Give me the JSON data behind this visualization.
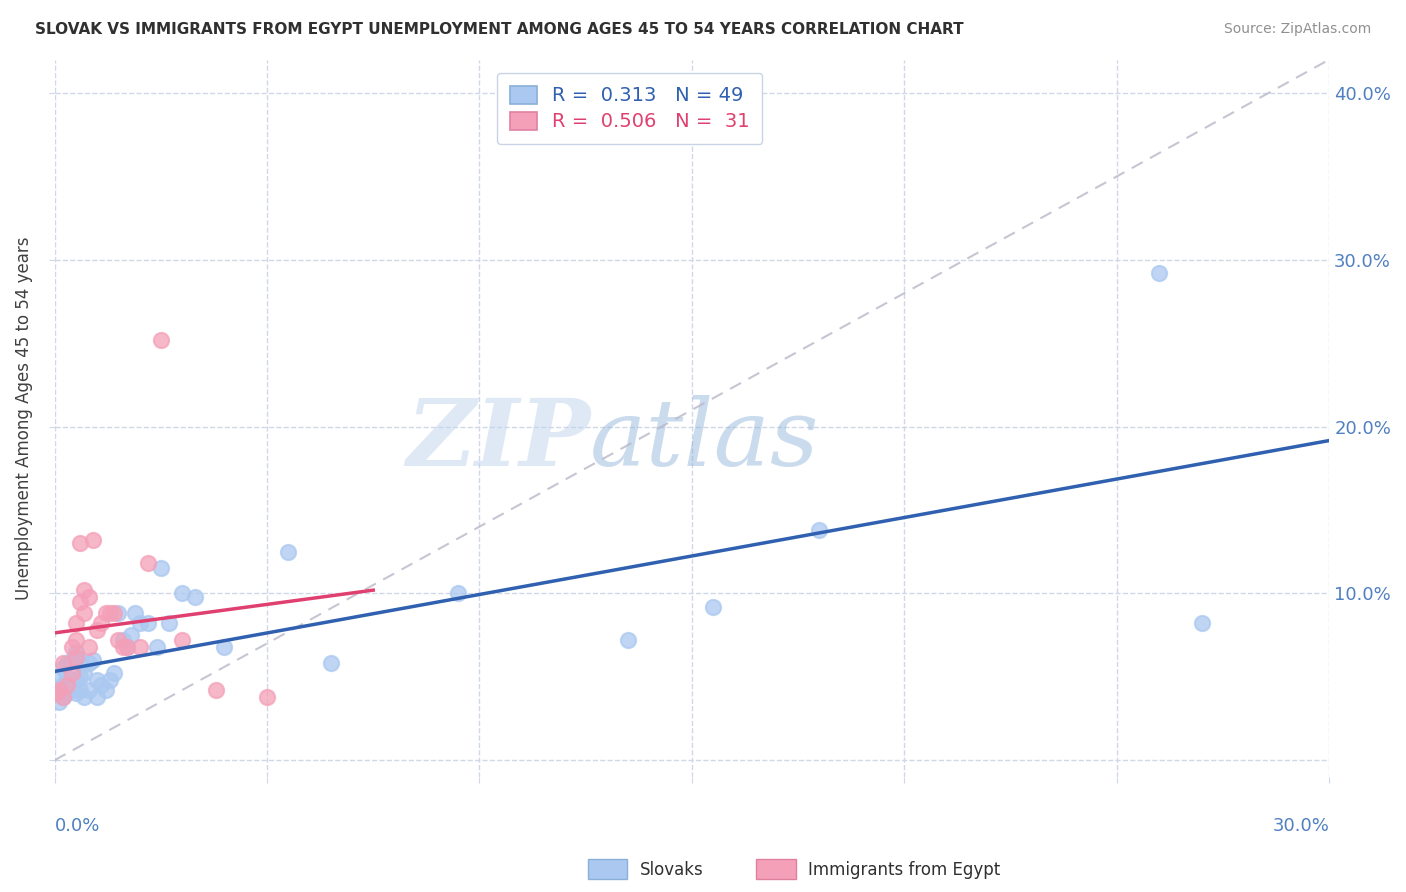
{
  "title": "SLOVAK VS IMMIGRANTS FROM EGYPT UNEMPLOYMENT AMONG AGES 45 TO 54 YEARS CORRELATION CHART",
  "source": "Source: ZipAtlas.com",
  "ylabel": "Unemployment Among Ages 45 to 54 years",
  "xlim": [
    0.0,
    0.3
  ],
  "ylim": [
    -0.01,
    0.42
  ],
  "ytick_values": [
    0.0,
    0.1,
    0.2,
    0.3,
    0.4
  ],
  "ytick_labels_right": [
    "",
    "10.0%",
    "20.0%",
    "30.0%",
    "40.0%"
  ],
  "xtick_values": [
    0.0,
    0.05,
    0.1,
    0.15,
    0.2,
    0.25,
    0.3
  ],
  "watermark_zip": "ZIP",
  "watermark_atlas": "atlas",
  "slovak_color": "#aac8f0",
  "egypt_color": "#f4a0b8",
  "slovak_line_color": "#3060b0",
  "egypt_line_color": "#e04070",
  "ref_line_color": "#b8b8c8",
  "title_color": "#303030",
  "source_color": "#909090",
  "tick_color": "#5080c0",
  "background_color": "#ffffff",
  "grid_color": "#d0d8e8",
  "slovak_R": 0.313,
  "slovak_N": 49,
  "egypt_R": 0.506,
  "egypt_N": 31,
  "slovak_points_x": [
    0.0,
    0.001,
    0.001,
    0.002,
    0.002,
    0.002,
    0.003,
    0.003,
    0.003,
    0.004,
    0.004,
    0.005,
    0.005,
    0.005,
    0.006,
    0.006,
    0.006,
    0.007,
    0.007,
    0.008,
    0.008,
    0.009,
    0.01,
    0.01,
    0.011,
    0.012,
    0.013,
    0.014,
    0.015,
    0.016,
    0.017,
    0.018,
    0.019,
    0.02,
    0.022,
    0.024,
    0.025,
    0.027,
    0.03,
    0.033,
    0.04,
    0.055,
    0.065,
    0.095,
    0.135,
    0.155,
    0.18,
    0.26,
    0.27
  ],
  "slovak_points_y": [
    0.04,
    0.05,
    0.035,
    0.055,
    0.045,
    0.038,
    0.05,
    0.04,
    0.058,
    0.06,
    0.042,
    0.065,
    0.048,
    0.04,
    0.06,
    0.05,
    0.042,
    0.052,
    0.038,
    0.058,
    0.042,
    0.06,
    0.048,
    0.038,
    0.045,
    0.042,
    0.048,
    0.052,
    0.088,
    0.072,
    0.068,
    0.075,
    0.088,
    0.082,
    0.082,
    0.068,
    0.115,
    0.082,
    0.1,
    0.098,
    0.068,
    0.125,
    0.058,
    0.1,
    0.072,
    0.092,
    0.138,
    0.292,
    0.082
  ],
  "egypt_points_x": [
    0.0,
    0.001,
    0.002,
    0.002,
    0.003,
    0.004,
    0.004,
    0.005,
    0.005,
    0.005,
    0.006,
    0.006,
    0.007,
    0.007,
    0.008,
    0.008,
    0.009,
    0.01,
    0.011,
    0.012,
    0.013,
    0.014,
    0.015,
    0.016,
    0.017,
    0.02,
    0.022,
    0.025,
    0.03,
    0.038,
    0.05
  ],
  "egypt_points_y": [
    0.04,
    0.042,
    0.038,
    0.058,
    0.045,
    0.052,
    0.068,
    0.072,
    0.082,
    0.062,
    0.13,
    0.095,
    0.088,
    0.102,
    0.098,
    0.068,
    0.132,
    0.078,
    0.082,
    0.088,
    0.088,
    0.088,
    0.072,
    0.068,
    0.068,
    0.068,
    0.118,
    0.252,
    0.072,
    0.042,
    0.038
  ]
}
